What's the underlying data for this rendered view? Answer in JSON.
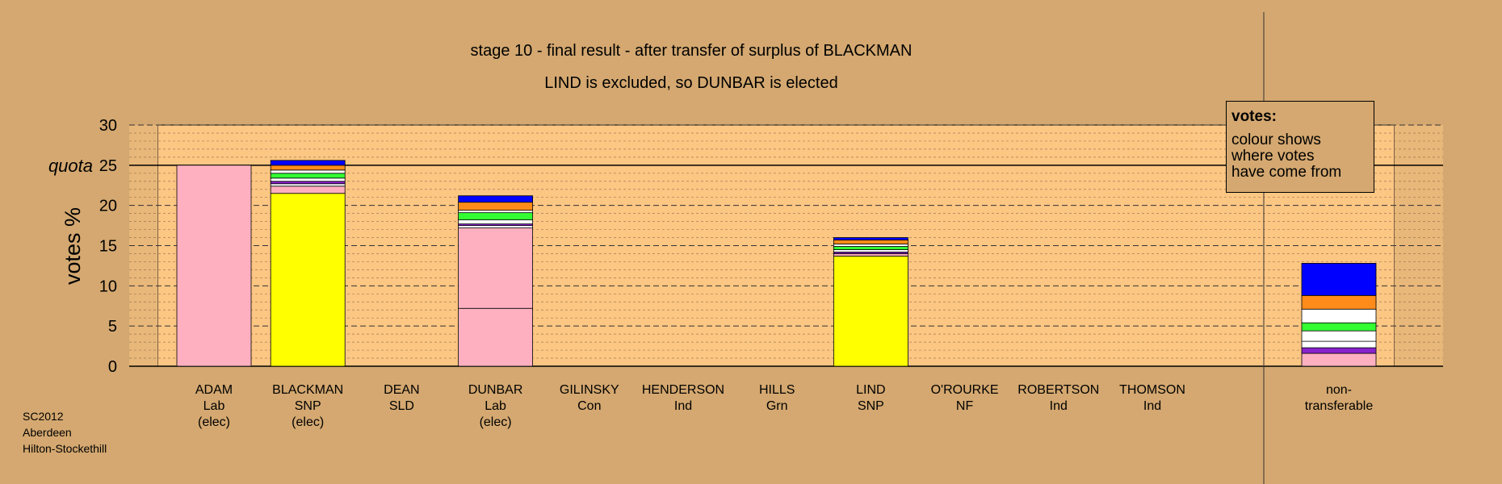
{
  "title_line1": "stage 10 - final result - after transfer of surplus of BLACKMAN",
  "title_line2": "LIND is excluded, so DUNBAR is elected",
  "legend": {
    "title": "votes:",
    "lines": [
      "colour shows",
      "where votes",
      "have come from"
    ]
  },
  "footer": [
    "SC2012",
    "Aberdeen",
    "Hilton-Stockethill"
  ],
  "colors": {
    "background": "#d4a870",
    "plot_area": "#fcc683",
    "Lab": "#ffb0c0",
    "SNP": "#ffff00",
    "blue": "#0000ff",
    "orange": "#ff8c1a",
    "white": "#ffffff",
    "green": "#33ff33",
    "purple": "#8822cc"
  },
  "chart_data": {
    "type": "bar",
    "stacked": true,
    "ylabel": "votes %",
    "ylim": [
      0,
      30
    ],
    "yticks": [
      0,
      5,
      10,
      15,
      20,
      25,
      30
    ],
    "quota": 25,
    "quota_label": "quota",
    "categories": [
      {
        "name": "ADAM",
        "party": "Lab",
        "status": "(elec)"
      },
      {
        "name": "BLACKMAN",
        "party": "SNP",
        "status": "(elec)"
      },
      {
        "name": "DEAN",
        "party": "SLD",
        "status": ""
      },
      {
        "name": "DUNBAR",
        "party": "Lab",
        "status": "(elec)"
      },
      {
        "name": "GILINSKY",
        "party": "Con",
        "status": ""
      },
      {
        "name": "HENDERSON",
        "party": "Ind",
        "status": ""
      },
      {
        "name": "HILLS",
        "party": "Grn",
        "status": ""
      },
      {
        "name": "LIND",
        "party": "SNP",
        "status": ""
      },
      {
        "name": "O'ROURKE",
        "party": "NF",
        "status": ""
      },
      {
        "name": "ROBERTSON",
        "party": "Ind",
        "status": ""
      },
      {
        "name": "THOMSON",
        "party": "Ind",
        "status": ""
      }
    ],
    "nontransferable_label": [
      "non-",
      "transferable"
    ],
    "bars": [
      {
        "segments": [
          {
            "color": "Lab",
            "value": 25.0
          }
        ]
      },
      {
        "segments": [
          {
            "color": "SNP",
            "value": 21.5
          },
          {
            "color": "Lab",
            "value": 0.9
          },
          {
            "color": "white",
            "value": 0.3
          },
          {
            "color": "purple",
            "value": 0.3
          },
          {
            "color": "white",
            "value": 0.4
          },
          {
            "color": "green",
            "value": 0.6
          },
          {
            "color": "white",
            "value": 0.4
          },
          {
            "color": "orange",
            "value": 0.6
          },
          {
            "color": "blue",
            "value": 0.6
          }
        ]
      },
      {
        "segments": []
      },
      {
        "segments": [
          {
            "color": "Lab",
            "value": 7.2
          },
          {
            "color": "Lab",
            "value": 10.0
          },
          {
            "color": "white",
            "value": 0.3
          },
          {
            "color": "purple",
            "value": 0.2
          },
          {
            "color": "white",
            "value": 0.5
          },
          {
            "color": "green",
            "value": 0.9
          },
          {
            "color": "white",
            "value": 0.3
          },
          {
            "color": "orange",
            "value": 1.0
          },
          {
            "color": "blue",
            "value": 0.8
          }
        ]
      },
      {
        "segments": []
      },
      {
        "segments": []
      },
      {
        "segments": []
      },
      {
        "segments": [
          {
            "color": "SNP",
            "value": 13.7
          },
          {
            "color": "Lab",
            "value": 0.3
          },
          {
            "color": "purple",
            "value": 0.2
          },
          {
            "color": "white",
            "value": 0.3
          },
          {
            "color": "green",
            "value": 0.4
          },
          {
            "color": "white",
            "value": 0.3
          },
          {
            "color": "orange",
            "value": 0.5
          },
          {
            "color": "blue",
            "value": 0.3
          }
        ]
      },
      {
        "segments": []
      },
      {
        "segments": []
      },
      {
        "segments": []
      }
    ],
    "nontransferable": {
      "segments": [
        {
          "color": "Lab",
          "value": 1.6
        },
        {
          "color": "purple",
          "value": 0.7
        },
        {
          "color": "white",
          "value": 0.8
        },
        {
          "color": "white",
          "value": 1.3
        },
        {
          "color": "green",
          "value": 1.0
        },
        {
          "color": "white",
          "value": 1.7
        },
        {
          "color": "orange",
          "value": 1.7
        },
        {
          "color": "blue",
          "value": 4.0
        }
      ]
    }
  }
}
